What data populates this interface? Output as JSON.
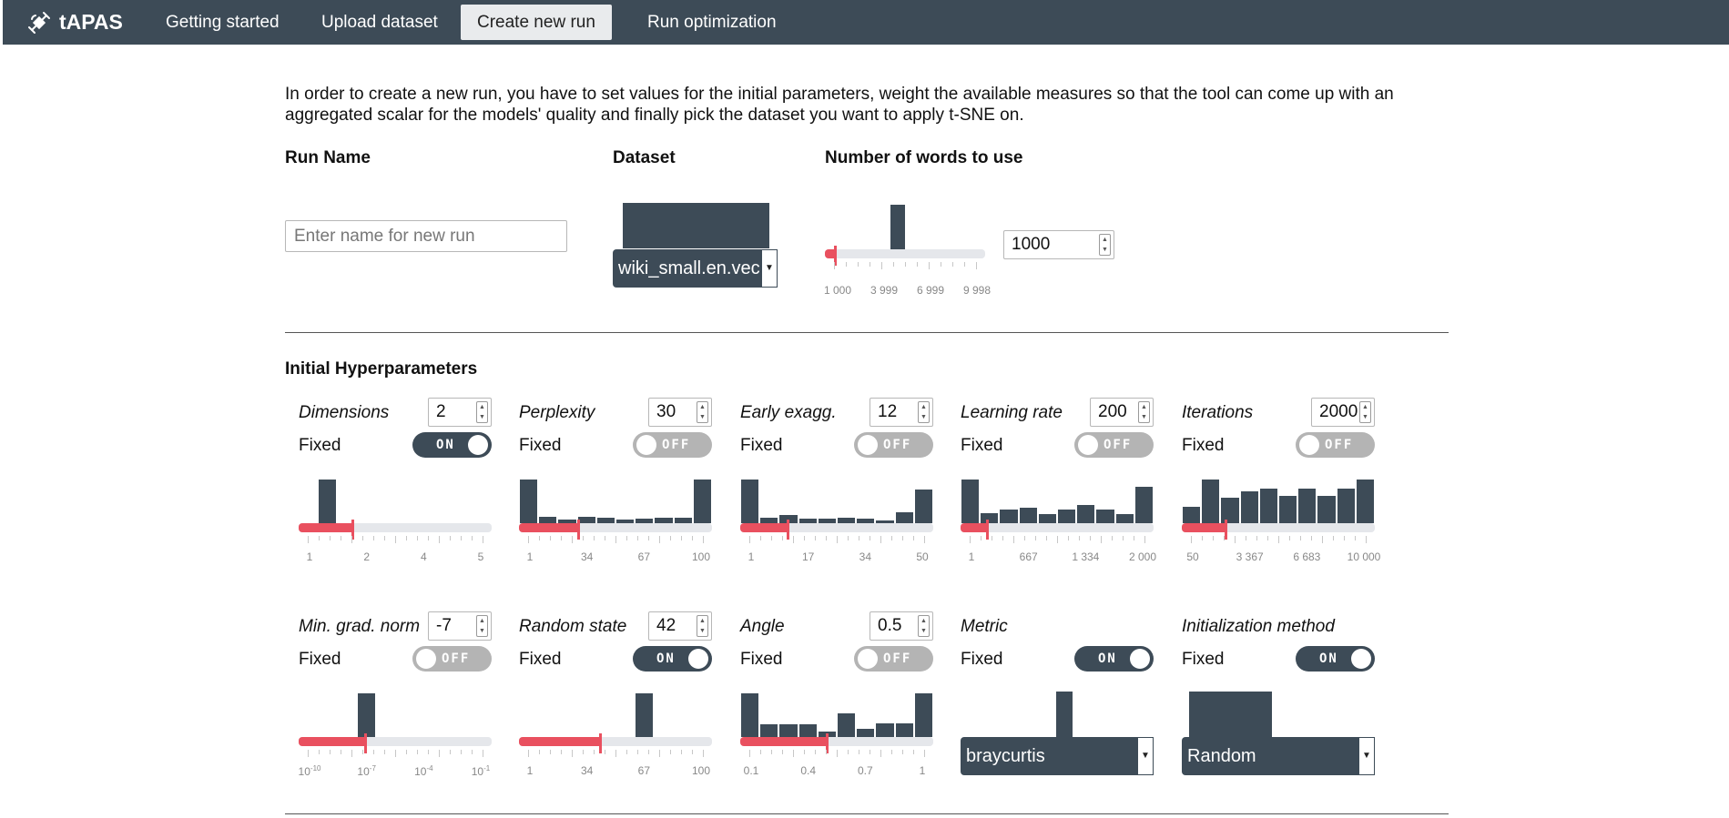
{
  "nav": {
    "brand": "tAPAS",
    "items": [
      "Getting started",
      "Upload dataset",
      "Create new run",
      "Run optimization"
    ],
    "active": "Create new run"
  },
  "intro": "In order to create a new run, you have to set values for the initial parameters, weight the available measures so that the tool can come up with an aggregated scalar for the models' quality and finally pick the dataset you want to apply t-SNE on.",
  "run_name": {
    "label": "Run Name",
    "placeholder": "Enter name for new run"
  },
  "dataset": {
    "label": "Dataset",
    "selected": "wiki_small.en.vec"
  },
  "words": {
    "label": "Number of words to use",
    "value": "1000",
    "ticks": [
      "1 000",
      "3 999",
      "6 999",
      "9 998"
    ]
  },
  "hyper": {
    "title": "Initial Hyperparameters",
    "fixed_label": "Fixed",
    "on_text": "ON",
    "off_text": "OFF",
    "params": [
      {
        "label": "Dimensions",
        "value": "2",
        "fixed": true,
        "ticks": [
          "1",
          "2",
          "4",
          "5"
        ]
      },
      {
        "label": "Perplexity",
        "value": "30",
        "fixed": false,
        "ticks": [
          "1",
          "34",
          "67",
          "100"
        ]
      },
      {
        "label": "Early exagg.",
        "value": "12",
        "fixed": false,
        "ticks": [
          "1",
          "17",
          "34",
          "50"
        ]
      },
      {
        "label": "Learning rate",
        "value": "200",
        "fixed": false,
        "ticks": [
          "1",
          "667",
          "1 334",
          "2 000"
        ]
      },
      {
        "label": "Iterations",
        "value": "2000",
        "fixed": false,
        "ticks": [
          "50",
          "3 367",
          "6 683",
          "10 000"
        ]
      },
      {
        "label": "Min. grad. norm",
        "value": "-7",
        "fixed": false,
        "ticks": [
          "10",
          "10",
          "10",
          "10"
        ],
        "tick_exponents": [
          "-10",
          "-7",
          "-4",
          "-1"
        ]
      },
      {
        "label": "Random state",
        "value": "42",
        "fixed": true,
        "ticks": [
          "1",
          "34",
          "67",
          "100"
        ]
      },
      {
        "label": "Angle",
        "value": "0.5",
        "fixed": false,
        "ticks": [
          "0.1",
          "0.4",
          "0.7",
          "1"
        ]
      },
      {
        "label": "Metric",
        "fixed": true,
        "selected": "braycurtis"
      },
      {
        "label": "Initialization method",
        "fixed": true,
        "selected": "Random"
      }
    ]
  },
  "colors": {
    "navbar": "#3d4b57",
    "accent": "#e9505f",
    "bar": "#3d4b57",
    "toggle_off": "#b4b4b4"
  }
}
